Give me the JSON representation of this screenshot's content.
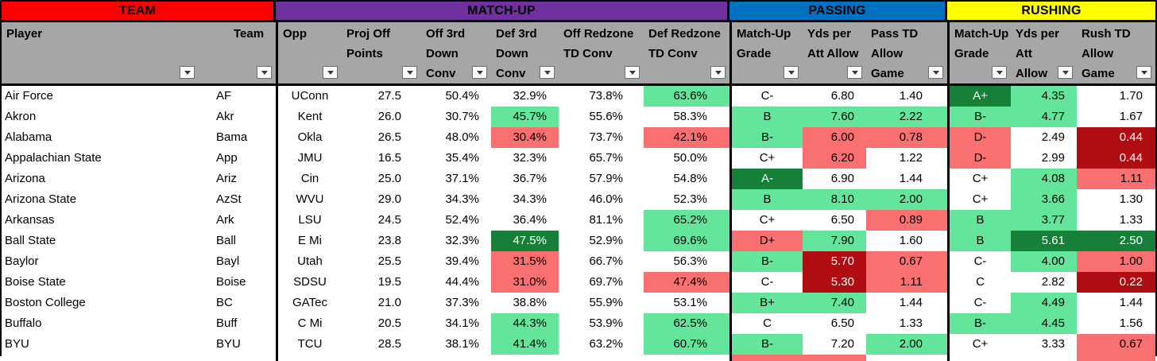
{
  "colors": {
    "header_gray": "#A6A6A6",
    "team_red": "#FF0000",
    "matchup_purple": "#7030A0",
    "passing_blue": "#0070C0",
    "rushing_yellow": "#FFFF00"
  },
  "bg_codes": {
    "g": "#63E69C",
    "r": "#FA7070",
    "G": "#168039",
    "R": "#B00D13"
  },
  "sections": [
    {
      "label": "TEAM",
      "color": "#FF0000"
    },
    {
      "label": "MATCH-UP",
      "color": "#7030A0"
    },
    {
      "label": "PASSING",
      "color": "#0070C0"
    },
    {
      "label": "RUSHING",
      "color": "#FFFF00"
    }
  ],
  "columns": [
    {
      "id": "player",
      "lines": [
        "Player"
      ]
    },
    {
      "id": "team",
      "lines": [
        "Team"
      ]
    },
    {
      "id": "opp",
      "lines": [
        "Opp"
      ],
      "section_start": true
    },
    {
      "id": "proj_off_points",
      "lines": [
        "Proj Off",
        "Points"
      ]
    },
    {
      "id": "off_3rd_down_conv",
      "lines": [
        "Off 3rd",
        "Down",
        "Conv"
      ]
    },
    {
      "id": "def_3rd_down_conv",
      "lines": [
        "Def 3rd",
        "Down",
        "Conv"
      ]
    },
    {
      "id": "off_redzone_td_conv",
      "lines": [
        "Off Redzone",
        "TD Conv"
      ]
    },
    {
      "id": "def_redzone_td_conv",
      "lines": [
        "Def Redzone",
        "TD Conv"
      ]
    },
    {
      "id": "pass_matchup_grade",
      "lines": [
        "Match-Up",
        "Grade"
      ],
      "section_start": true
    },
    {
      "id": "pass_yds_per_att_allow",
      "lines": [
        "Yds per",
        "Att Allow"
      ]
    },
    {
      "id": "pass_td_allow_game",
      "lines": [
        "Pass TD",
        "Allow",
        "Game"
      ]
    },
    {
      "id": "rush_matchup_grade",
      "lines": [
        "Match-Up",
        "Grade"
      ],
      "section_start": true
    },
    {
      "id": "rush_yds_per_att_allow",
      "lines": [
        "Yds per",
        "Att",
        "Allow"
      ]
    },
    {
      "id": "rush_td_allow_game",
      "lines": [
        "Rush TD",
        "Allow",
        "Game"
      ]
    }
  ],
  "rows": [
    {
      "cells": [
        [
          "Air Force",
          ""
        ],
        [
          "AF",
          ""
        ],
        [
          "UConn",
          ""
        ],
        [
          "27.5",
          ""
        ],
        [
          "50.4%",
          ""
        ],
        [
          "32.9%",
          ""
        ],
        [
          "73.8%",
          ""
        ],
        [
          "63.6%",
          "g"
        ],
        [
          "C-",
          ""
        ],
        [
          "6.80",
          ""
        ],
        [
          "1.40",
          ""
        ],
        [
          "A+",
          "G"
        ],
        [
          "4.35",
          "g"
        ],
        [
          "1.70",
          ""
        ]
      ]
    },
    {
      "cells": [
        [
          "Akron",
          ""
        ],
        [
          "Akr",
          ""
        ],
        [
          "Kent",
          ""
        ],
        [
          "26.0",
          ""
        ],
        [
          "30.7%",
          ""
        ],
        [
          "45.7%",
          "g"
        ],
        [
          "55.6%",
          ""
        ],
        [
          "58.3%",
          ""
        ],
        [
          "B",
          "g"
        ],
        [
          "7.60",
          "g"
        ],
        [
          "2.22",
          "g"
        ],
        [
          "B-",
          "g"
        ],
        [
          "4.77",
          "g"
        ],
        [
          "1.67",
          ""
        ]
      ]
    },
    {
      "cells": [
        [
          "Alabama",
          ""
        ],
        [
          "Bama",
          ""
        ],
        [
          "Okla",
          ""
        ],
        [
          "26.5",
          ""
        ],
        [
          "48.0%",
          ""
        ],
        [
          "30.4%",
          "r"
        ],
        [
          "73.7%",
          ""
        ],
        [
          "42.1%",
          "r"
        ],
        [
          "B-",
          "g"
        ],
        [
          "6.00",
          "r"
        ],
        [
          "0.78",
          "r"
        ],
        [
          "D-",
          "r"
        ],
        [
          "2.49",
          ""
        ],
        [
          "0.44",
          "R"
        ]
      ]
    },
    {
      "cells": [
        [
          "Appalachian State",
          ""
        ],
        [
          "App",
          ""
        ],
        [
          "JMU",
          ""
        ],
        [
          "16.5",
          ""
        ],
        [
          "35.4%",
          ""
        ],
        [
          "32.3%",
          ""
        ],
        [
          "65.7%",
          ""
        ],
        [
          "50.0%",
          ""
        ],
        [
          "C+",
          ""
        ],
        [
          "6.20",
          "r"
        ],
        [
          "1.22",
          ""
        ],
        [
          "D-",
          "r"
        ],
        [
          "2.99",
          ""
        ],
        [
          "0.44",
          "R"
        ]
      ]
    },
    {
      "cells": [
        [
          "Arizona",
          ""
        ],
        [
          "Ariz",
          ""
        ],
        [
          "Cin",
          ""
        ],
        [
          "25.0",
          ""
        ],
        [
          "37.1%",
          ""
        ],
        [
          "36.7%",
          ""
        ],
        [
          "57.9%",
          ""
        ],
        [
          "54.8%",
          ""
        ],
        [
          "A-",
          "G"
        ],
        [
          "6.90",
          ""
        ],
        [
          "1.44",
          ""
        ],
        [
          "C+",
          ""
        ],
        [
          "4.08",
          "g"
        ],
        [
          "1.11",
          "r"
        ]
      ]
    },
    {
      "cells": [
        [
          "Arizona State",
          ""
        ],
        [
          "AzSt",
          ""
        ],
        [
          "WVU",
          ""
        ],
        [
          "29.0",
          ""
        ],
        [
          "34.3%",
          ""
        ],
        [
          "34.3%",
          ""
        ],
        [
          "46.0%",
          ""
        ],
        [
          "52.3%",
          ""
        ],
        [
          "B",
          "g"
        ],
        [
          "8.10",
          "g"
        ],
        [
          "2.00",
          "g"
        ],
        [
          "C+",
          ""
        ],
        [
          "3.66",
          "g"
        ],
        [
          "1.30",
          ""
        ]
      ]
    },
    {
      "cells": [
        [
          "Arkansas",
          ""
        ],
        [
          "Ark",
          ""
        ],
        [
          "LSU",
          ""
        ],
        [
          "24.5",
          ""
        ],
        [
          "52.4%",
          ""
        ],
        [
          "36.4%",
          ""
        ],
        [
          "81.1%",
          ""
        ],
        [
          "65.2%",
          "g"
        ],
        [
          "C+",
          ""
        ],
        [
          "6.50",
          ""
        ],
        [
          "0.89",
          "r"
        ],
        [
          "B",
          "g"
        ],
        [
          "3.77",
          "g"
        ],
        [
          "1.33",
          ""
        ]
      ]
    },
    {
      "cells": [
        [
          "Ball State",
          ""
        ],
        [
          "Ball",
          ""
        ],
        [
          "E Mi",
          ""
        ],
        [
          "23.8",
          ""
        ],
        [
          "32.3%",
          ""
        ],
        [
          "47.5%",
          "G"
        ],
        [
          "52.9%",
          ""
        ],
        [
          "69.6%",
          "g"
        ],
        [
          "D+",
          "r"
        ],
        [
          "7.90",
          "g"
        ],
        [
          "1.60",
          ""
        ],
        [
          "B",
          "g"
        ],
        [
          "5.61",
          "G"
        ],
        [
          "2.50",
          "G"
        ]
      ]
    },
    {
      "cells": [
        [
          "Baylor",
          ""
        ],
        [
          "Bayl",
          ""
        ],
        [
          "Utah",
          ""
        ],
        [
          "25.5",
          ""
        ],
        [
          "39.4%",
          ""
        ],
        [
          "31.5%",
          "r"
        ],
        [
          "66.7%",
          ""
        ],
        [
          "56.3%",
          ""
        ],
        [
          "B-",
          "g"
        ],
        [
          "5.70",
          "R"
        ],
        [
          "0.67",
          "r"
        ],
        [
          "C-",
          ""
        ],
        [
          "4.00",
          "g"
        ],
        [
          "1.00",
          "r"
        ]
      ]
    },
    {
      "cells": [
        [
          "Boise State",
          ""
        ],
        [
          "Boise",
          ""
        ],
        [
          "SDSU",
          ""
        ],
        [
          "19.5",
          ""
        ],
        [
          "44.4%",
          ""
        ],
        [
          "31.0%",
          "r"
        ],
        [
          "69.7%",
          ""
        ],
        [
          "47.4%",
          "r"
        ],
        [
          "C-",
          ""
        ],
        [
          "5.30",
          "R"
        ],
        [
          "1.11",
          "r"
        ],
        [
          "C",
          ""
        ],
        [
          "2.82",
          ""
        ],
        [
          "0.22",
          "R"
        ]
      ]
    },
    {
      "cells": [
        [
          "Boston College",
          ""
        ],
        [
          "BC",
          ""
        ],
        [
          "GATec",
          ""
        ],
        [
          "21.0",
          ""
        ],
        [
          "37.3%",
          ""
        ],
        [
          "38.8%",
          ""
        ],
        [
          "55.9%",
          ""
        ],
        [
          "53.1%",
          ""
        ],
        [
          "B+",
          "g"
        ],
        [
          "7.40",
          "g"
        ],
        [
          "1.44",
          ""
        ],
        [
          "C-",
          ""
        ],
        [
          "4.49",
          "g"
        ],
        [
          "1.44",
          ""
        ]
      ]
    },
    {
      "cells": [
        [
          "Buffalo",
          ""
        ],
        [
          "Buff",
          ""
        ],
        [
          "C Mi",
          ""
        ],
        [
          "20.5",
          ""
        ],
        [
          "34.1%",
          ""
        ],
        [
          "44.3%",
          "g"
        ],
        [
          "53.9%",
          ""
        ],
        [
          "62.5%",
          "g"
        ],
        [
          "C",
          ""
        ],
        [
          "6.50",
          ""
        ],
        [
          "1.33",
          ""
        ],
        [
          "B-",
          "g"
        ],
        [
          "4.45",
          "g"
        ],
        [
          "1.56",
          ""
        ]
      ]
    },
    {
      "cells": [
        [
          "BYU",
          ""
        ],
        [
          "BYU",
          ""
        ],
        [
          "TCU",
          ""
        ],
        [
          "28.5",
          ""
        ],
        [
          "38.1%",
          ""
        ],
        [
          "41.4%",
          "g"
        ],
        [
          "63.2%",
          ""
        ],
        [
          "60.7%",
          "g"
        ],
        [
          "B-",
          "g"
        ],
        [
          "7.20",
          ""
        ],
        [
          "2.00",
          "g"
        ],
        [
          "C+",
          ""
        ],
        [
          "3.33",
          ""
        ],
        [
          "0.67",
          "r"
        ]
      ]
    }
  ],
  "partial_row_bgs": [
    "",
    "",
    "",
    "",
    "",
    "",
    "",
    "",
    "r",
    "r",
    "",
    "",
    "",
    "r"
  ]
}
